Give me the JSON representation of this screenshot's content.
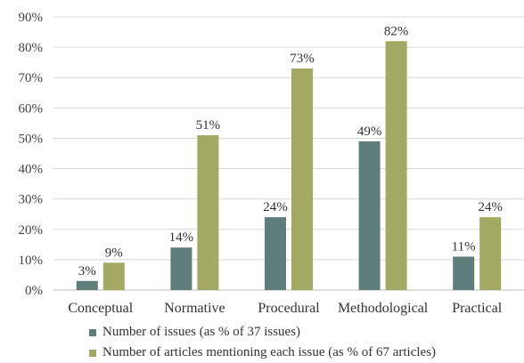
{
  "chart_data": {
    "type": "bar",
    "categories": [
      "Conceptual",
      "Normative",
      "Procedural",
      "Methodological",
      "Practical"
    ],
    "series": [
      {
        "name": "Number of issues (as % of 37 issues)",
        "values": [
          3,
          14,
          24,
          49,
          11
        ],
        "labels": [
          "3%",
          "14%",
          "24%",
          "49%",
          "11%"
        ],
        "color": "#5f7d7b"
      },
      {
        "name": "Number of articles mentioning each issue (as % of 67 articles)",
        "values": [
          9,
          51,
          73,
          82,
          24
        ],
        "labels": [
          "9%",
          "51%",
          "73%",
          "82%",
          "24%"
        ],
        "color": "#a3a862"
      }
    ],
    "ylim": [
      0,
      90
    ],
    "yticks": [
      "0%",
      "10%",
      "20%",
      "30%",
      "40%",
      "50%",
      "60%",
      "70%",
      "80%",
      "90%"
    ],
    "grid": true,
    "legend": "bottom"
  }
}
